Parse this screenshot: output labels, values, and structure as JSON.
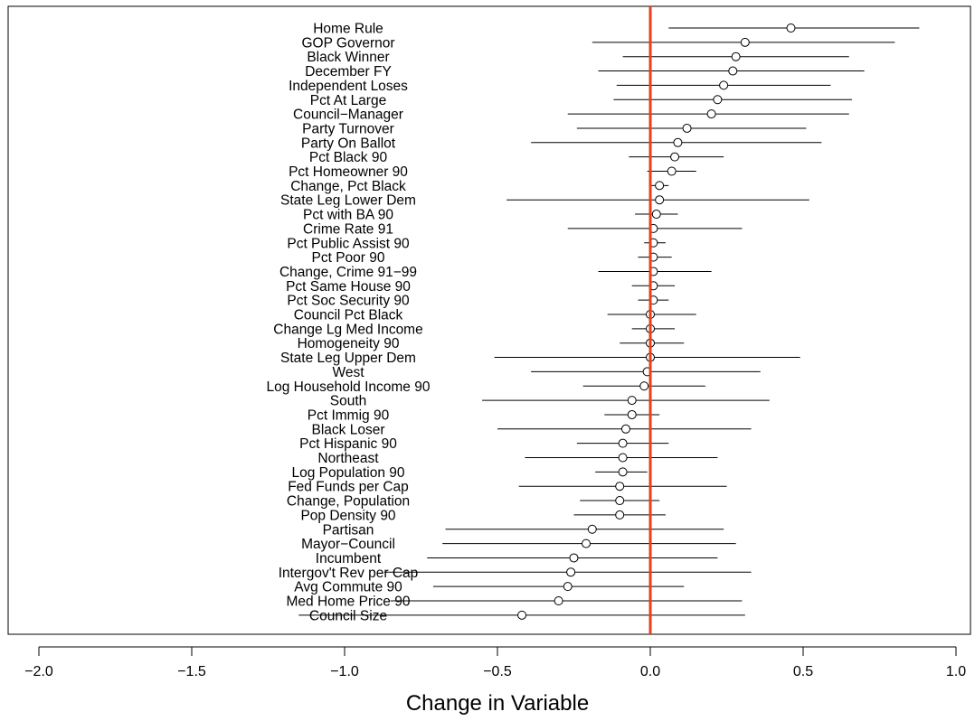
{
  "chart_data": {
    "type": "scatter",
    "title": "",
    "xlabel": "Change in Variable",
    "ylabel": "",
    "xlim": [
      -2.0,
      1.0
    ],
    "xticks": [
      -2.0,
      -1.5,
      -1.0,
      -0.5,
      0.0,
      0.5,
      1.0
    ],
    "xtick_labels": [
      "−2.0",
      "−1.5",
      "−1.0",
      "−0.5",
      "0.0",
      "0.5",
      "1.0"
    ],
    "reference_line": {
      "x": 0.0,
      "color": "#e8401c"
    },
    "grid": false,
    "legend": "none",
    "points": [
      {
        "label": "Home Rule",
        "estimate": 0.46,
        "lower": 0.06,
        "upper": 0.88
      },
      {
        "label": "GOP Governor",
        "estimate": 0.31,
        "lower": -0.19,
        "upper": 0.8
      },
      {
        "label": "Black Winner",
        "estimate": 0.28,
        "lower": -0.09,
        "upper": 0.65
      },
      {
        "label": "December FY",
        "estimate": 0.27,
        "lower": -0.17,
        "upper": 0.7
      },
      {
        "label": "Independent Loses",
        "estimate": 0.24,
        "lower": -0.11,
        "upper": 0.59
      },
      {
        "label": "Pct At Large",
        "estimate": 0.22,
        "lower": -0.12,
        "upper": 0.66
      },
      {
        "label": "Council−Manager",
        "estimate": 0.2,
        "lower": -0.27,
        "upper": 0.65
      },
      {
        "label": "Party Turnover",
        "estimate": 0.12,
        "lower": -0.24,
        "upper": 0.51
      },
      {
        "label": "Party On Ballot",
        "estimate": 0.09,
        "lower": -0.39,
        "upper": 0.56
      },
      {
        "label": "Pct Black 90",
        "estimate": 0.08,
        "lower": -0.07,
        "upper": 0.24
      },
      {
        "label": "Pct Homeowner 90",
        "estimate": 0.07,
        "lower": -0.01,
        "upper": 0.15
      },
      {
        "label": "Change, Pct Black",
        "estimate": 0.03,
        "lower": 0.0,
        "upper": 0.06
      },
      {
        "label": "State Leg Lower Dem",
        "estimate": 0.03,
        "lower": -0.47,
        "upper": 0.52
      },
      {
        "label": "Pct with BA 90",
        "estimate": 0.02,
        "lower": -0.05,
        "upper": 0.09
      },
      {
        "label": "Crime Rate 91",
        "estimate": 0.01,
        "lower": -0.27,
        "upper": 0.3
      },
      {
        "label": "Pct Public Assist 90",
        "estimate": 0.01,
        "lower": -0.02,
        "upper": 0.05
      },
      {
        "label": "Pct Poor 90",
        "estimate": 0.01,
        "lower": -0.04,
        "upper": 0.07
      },
      {
        "label": "Change, Crime 91−99",
        "estimate": 0.01,
        "lower": -0.17,
        "upper": 0.2
      },
      {
        "label": "Pct Same House 90",
        "estimate": 0.01,
        "lower": -0.06,
        "upper": 0.08
      },
      {
        "label": "Pct Soc Security 90",
        "estimate": 0.01,
        "lower": -0.04,
        "upper": 0.06
      },
      {
        "label": "Council Pct Black",
        "estimate": 0.0,
        "lower": -0.14,
        "upper": 0.15
      },
      {
        "label": "Change Lg Med Income",
        "estimate": 0.0,
        "lower": -0.06,
        "upper": 0.08
      },
      {
        "label": "Homogeneity 90",
        "estimate": 0.0,
        "lower": -0.1,
        "upper": 0.11
      },
      {
        "label": "State Leg Upper Dem",
        "estimate": 0.0,
        "lower": -0.51,
        "upper": 0.49
      },
      {
        "label": "West",
        "estimate": -0.01,
        "lower": -0.39,
        "upper": 0.36
      },
      {
        "label": "Log Household Income 90",
        "estimate": -0.02,
        "lower": -0.22,
        "upper": 0.18
      },
      {
        "label": "South",
        "estimate": -0.06,
        "lower": -0.55,
        "upper": 0.39
      },
      {
        "label": "Pct Immig 90",
        "estimate": -0.06,
        "lower": -0.15,
        "upper": 0.03
      },
      {
        "label": "Black Loser",
        "estimate": -0.08,
        "lower": -0.5,
        "upper": 0.33
      },
      {
        "label": "Pct Hispanic 90",
        "estimate": -0.09,
        "lower": -0.24,
        "upper": 0.06
      },
      {
        "label": "Northeast",
        "estimate": -0.09,
        "lower": -0.41,
        "upper": 0.22
      },
      {
        "label": "Log Population 90",
        "estimate": -0.09,
        "lower": -0.18,
        "upper": -0.01
      },
      {
        "label": "Fed Funds per Cap",
        "estimate": -0.1,
        "lower": -0.43,
        "upper": 0.25
      },
      {
        "label": "Change, Population",
        "estimate": -0.1,
        "lower": -0.23,
        "upper": 0.03
      },
      {
        "label": "Pop Density 90",
        "estimate": -0.1,
        "lower": -0.25,
        "upper": 0.05
      },
      {
        "label": "Partisan",
        "estimate": -0.19,
        "lower": -0.67,
        "upper": 0.24
      },
      {
        "label": "Mayor−Council",
        "estimate": -0.21,
        "lower": -0.68,
        "upper": 0.28
      },
      {
        "label": "Incumbent",
        "estimate": -0.25,
        "lower": -0.73,
        "upper": 0.22
      },
      {
        "label": "Intergov't Rev per Cap",
        "estimate": -0.26,
        "lower": -0.87,
        "upper": 0.33
      },
      {
        "label": "Avg Commute 90",
        "estimate": -0.27,
        "lower": -0.71,
        "upper": 0.11
      },
      {
        "label": "Med Home Price 90",
        "estimate": -0.3,
        "lower": -0.85,
        "upper": 0.3
      },
      {
        "label": "Council Size",
        "estimate": -0.42,
        "lower": -1.15,
        "upper": 0.31
      }
    ]
  }
}
